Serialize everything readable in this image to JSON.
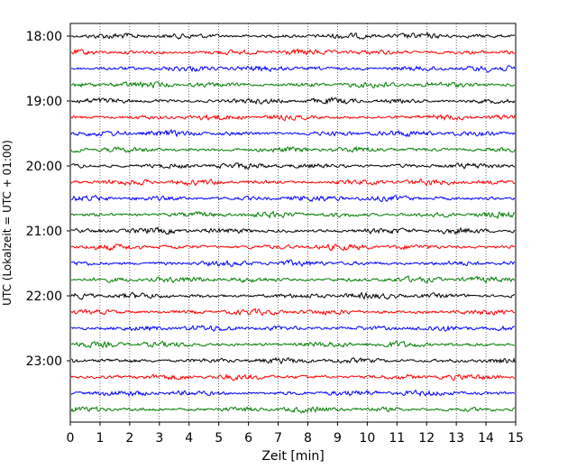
{
  "chart_data": {
    "type": "line",
    "title": "",
    "xlabel": "Zeit  [min]",
    "ylabel": "UTC (Lokalzeit = UTC + 01:00)",
    "xlim": [
      0,
      15
    ],
    "x_ticks": [
      "0",
      "1",
      "2",
      "3",
      "4",
      "5",
      "6",
      "7",
      "8",
      "9",
      "10",
      "11",
      "12",
      "13",
      "14",
      "15"
    ],
    "y_ticks": [
      "18:00",
      "19:00",
      "20:00",
      "21:00",
      "22:00",
      "23:00"
    ],
    "grid": "vertical dotted",
    "trace_colors": [
      "#000000",
      "#ff0000",
      "#0000ff",
      "#008000"
    ],
    "traces": [
      {
        "start": "18:00",
        "color": "#000000"
      },
      {
        "start": "18:15",
        "color": "#ff0000"
      },
      {
        "start": "18:30",
        "color": "#0000ff"
      },
      {
        "start": "18:45",
        "color": "#008000"
      },
      {
        "start": "19:00",
        "color": "#000000"
      },
      {
        "start": "19:15",
        "color": "#ff0000"
      },
      {
        "start": "19:30",
        "color": "#0000ff"
      },
      {
        "start": "19:45",
        "color": "#008000"
      },
      {
        "start": "20:00",
        "color": "#000000"
      },
      {
        "start": "20:15",
        "color": "#ff0000"
      },
      {
        "start": "20:30",
        "color": "#0000ff"
      },
      {
        "start": "20:45",
        "color": "#008000"
      },
      {
        "start": "21:00",
        "color": "#000000"
      },
      {
        "start": "21:15",
        "color": "#ff0000"
      },
      {
        "start": "21:30",
        "color": "#0000ff"
      },
      {
        "start": "21:45",
        "color": "#008000"
      },
      {
        "start": "22:00",
        "color": "#000000"
      },
      {
        "start": "22:15",
        "color": "#ff0000"
      },
      {
        "start": "22:30",
        "color": "#0000ff"
      },
      {
        "start": "22:45",
        "color": "#008000"
      },
      {
        "start": "23:00",
        "color": "#000000"
      },
      {
        "start": "23:15",
        "color": "#ff0000"
      },
      {
        "start": "23:30",
        "color": "#0000ff"
      },
      {
        "start": "23:45",
        "color": "#008000"
      }
    ]
  }
}
